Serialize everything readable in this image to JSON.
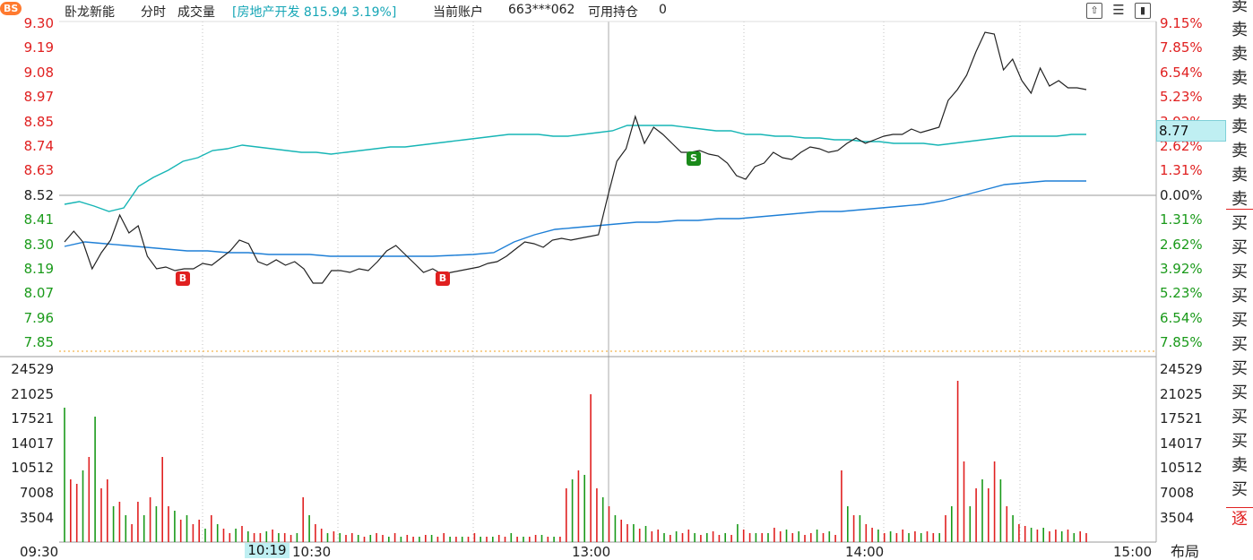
{
  "header": {
    "badge": "BS",
    "stock_name": "卧龙新能",
    "mode": "分时",
    "sub_indicator": "成交量",
    "sector_info": "[房地产开发 815.94 3.19%]",
    "account_label": "当前账户",
    "account_id": "663***062",
    "position_label": "可用持仓",
    "position_value": "0"
  },
  "toolbar_icons": [
    "upload-icon",
    "menu-icon",
    "window-icon"
  ],
  "price_labels": [
    "9.30",
    "9.19",
    "9.08",
    "8.97",
    "8.85",
    "8.74",
    "8.63",
    "8.52",
    "8.41",
    "8.30",
    "8.19",
    "8.07",
    "7.96",
    "7.85"
  ],
  "pct_labels": [
    "9.15%",
    "7.85%",
    "6.54%",
    "5.23%",
    "3.92%",
    "2.62%",
    "1.31%",
    "0.00%",
    "1.31%",
    "2.62%",
    "3.92%",
    "5.23%",
    "6.54%",
    "7.85%"
  ],
  "volume_labels": [
    "24529",
    "21025",
    "17521",
    "14017",
    "10512",
    "7008",
    "3504"
  ],
  "time_labels": [
    "09:30",
    "10:30",
    "13:00",
    "14:00",
    "15:00"
  ],
  "crosshair_time": "10:19",
  "current_price_tag": "8.77",
  "side_orders": [
    "卖",
    "卖",
    "卖",
    "卖",
    "卖",
    "卖",
    "卖",
    "卖",
    "卖",
    "买",
    "买",
    "买",
    "买",
    "买",
    "买",
    "买",
    "买",
    "买",
    "买",
    "卖",
    "买"
  ],
  "side_bottom": "逐",
  "bottom_right_label": "布局",
  "trade_markers": [
    "B",
    "B",
    "S"
  ],
  "colors": {
    "up": "#e02020",
    "down": "#1a9a1a",
    "price_line": "#222222",
    "avg_line": "#16b5b5",
    "sector_line": "#1e7fd6",
    "sector_text": "#16a6b6",
    "baseline": "#c8c8c8",
    "limit_line": "#f0a020"
  }
}
